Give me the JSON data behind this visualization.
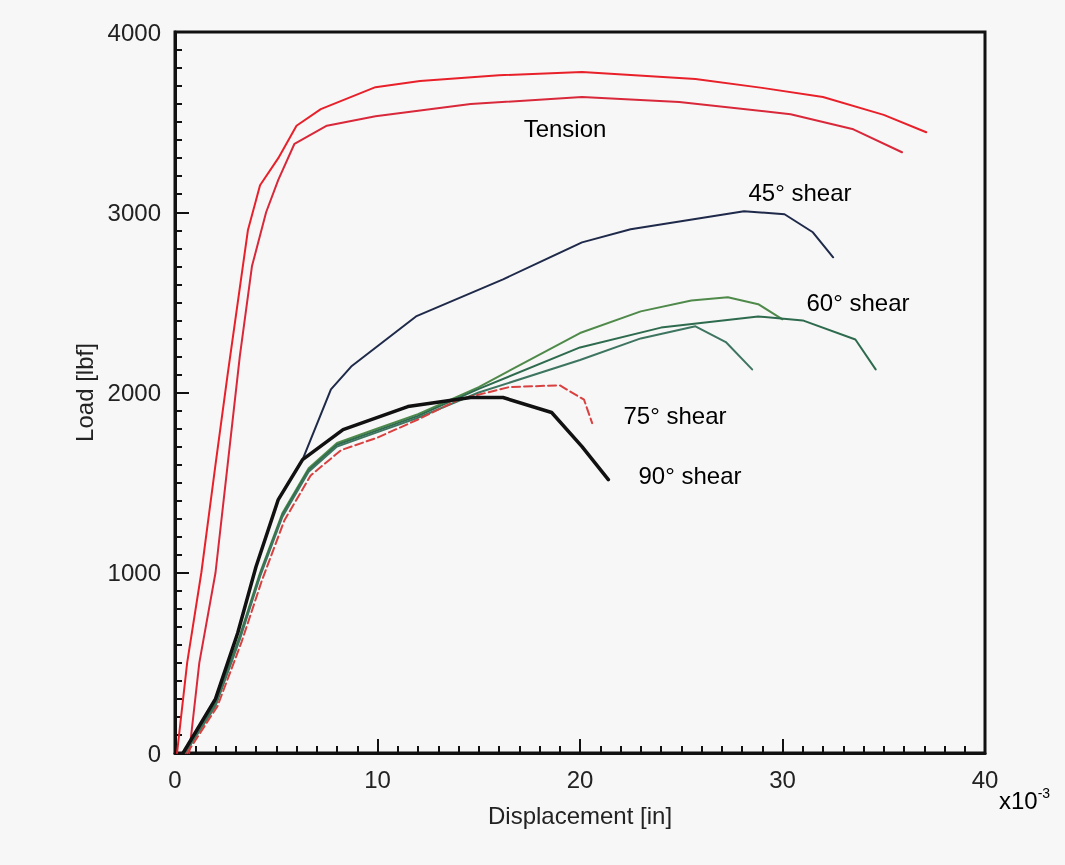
{
  "chart_data": {
    "type": "line",
    "xlabel": "Displacement [in]",
    "ylabel": "Load [lbf]",
    "xlim": [
      0,
      40
    ],
    "xticks": [
      0,
      10,
      20,
      30,
      40
    ],
    "ylim": [
      0,
      4000
    ],
    "yticks": [
      0,
      1000,
      2000,
      3000,
      4000
    ],
    "grid": false,
    "marker": "none",
    "line_style": "solid",
    "series": [
      {
        "color": "#e8202a",
        "x": [
          0.1,
          0.6,
          1.3,
          2.0,
          2.6,
          3.1,
          3.6,
          4.2,
          5.1,
          6.0,
          7.2,
          9.9,
          12.1,
          16,
          20.1,
          25.7,
          29,
          32,
          35,
          37.1
        ],
        "values": [
          0,
          500,
          1000,
          1600,
          2100,
          2500,
          2900,
          3150,
          3300,
          3480,
          3572,
          3694,
          3728,
          3760,
          3778,
          3739,
          3690,
          3639,
          3540,
          3444
        ]
      },
      {
        "color": "#d8283a",
        "x": [
          0.7,
          1.2,
          2.0,
          2.6,
          3.2,
          3.8,
          4.5,
          5.1,
          5.9,
          7.5,
          9.9,
          14.6,
          20.1,
          24.9,
          30.4,
          33.5,
          35.9
        ],
        "values": [
          0,
          500,
          1000,
          1600,
          2200,
          2700,
          3000,
          3180,
          3380,
          3480,
          3533,
          3600,
          3639,
          3611,
          3544,
          3460,
          3333
        ]
      },
      {
        "color": "#1f2a4a",
        "x": [
          0.4,
          2.0,
          3.1,
          4.0,
          5.1,
          6.3,
          7.7,
          8.7,
          11.9,
          16.2,
          20.1,
          22.5,
          28.1,
          30.1,
          31.5,
          32.5
        ],
        "values": [
          0,
          300,
          667,
          1033,
          1406,
          1628,
          2017,
          2144,
          2422,
          2628,
          2833,
          2906,
          3006,
          2989,
          2889,
          2750
        ]
      },
      {
        "color": "#4f8a4a",
        "x": [
          0.5,
          2.0,
          3.2,
          4.2,
          5.3,
          6.6,
          8.0,
          10,
          12,
          15,
          20,
          23,
          25.5,
          27.3,
          28.8,
          30
        ],
        "values": [
          0,
          280,
          650,
          1000,
          1330,
          1580,
          1720,
          1800,
          1880,
          2030,
          2330,
          2450,
          2510,
          2528,
          2490,
          2406
        ]
      },
      {
        "color": "#2e6b4e",
        "x": [
          0.5,
          2.0,
          3.2,
          4.2,
          5.3,
          6.6,
          8.0,
          10,
          12,
          15,
          20,
          24,
          28.8,
          31,
          33.6,
          34.6
        ],
        "values": [
          0,
          270,
          640,
          990,
          1320,
          1570,
          1710,
          1790,
          1870,
          2020,
          2250,
          2360,
          2422,
          2400,
          2294,
          2128
        ]
      },
      {
        "color": "#3d7560",
        "x": [
          0.5,
          2.0,
          3.2,
          4.2,
          5.3,
          6.6,
          8.0,
          10,
          12,
          15,
          20,
          23,
          25.7,
          27.2,
          28.5
        ],
        "values": [
          0,
          260,
          630,
          980,
          1310,
          1560,
          1700,
          1780,
          1860,
          2000,
          2180,
          2300,
          2367,
          2280,
          2128
        ]
      },
      {
        "color": "#d94040",
        "line_style": "dashed",
        "x": [
          0.6,
          2.1,
          3.3,
          4.3,
          5.4,
          6.7,
          8.2,
          10,
          12,
          14,
          16.5,
          19,
          20.2,
          20.6
        ],
        "values": [
          0,
          260,
          620,
          960,
          1290,
          1540,
          1680,
          1750,
          1850,
          1960,
          2030,
          2040,
          1960,
          1830
        ]
      },
      {
        "color": "#111111",
        "x": [
          0.4,
          2.0,
          3.1,
          4.0,
          5.1,
          6.3,
          8.3,
          11.5,
          14.6,
          16.2,
          18.6,
          20.1,
          21.4
        ],
        "values": [
          0,
          300,
          667,
          1033,
          1406,
          1628,
          1794,
          1922,
          1972,
          1972,
          1889,
          1700,
          1517
        ]
      }
    ],
    "annotations": [
      "Tension",
      "45° shear",
      "60° shear",
      "75° shear",
      "90° shear",
      "x10$^{-3}$"
    ]
  }
}
